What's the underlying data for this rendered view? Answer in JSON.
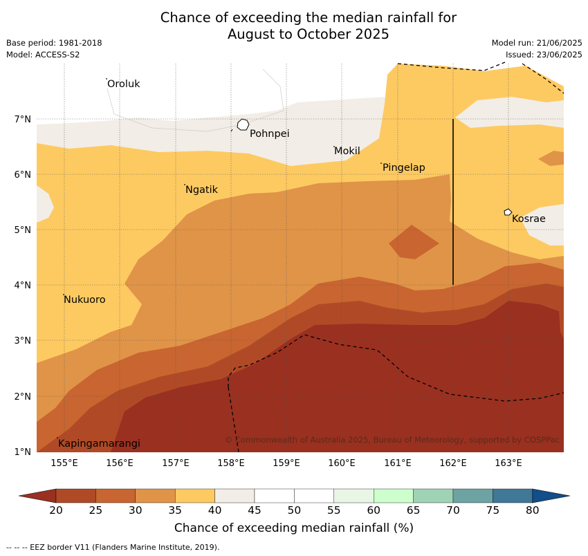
{
  "title": {
    "line1": "Chance of exceeding the median rainfall for",
    "line2": "August to October 2025"
  },
  "meta": {
    "base_period": "Base period: 1981-2018",
    "model": "Model: ACCESS-S2",
    "model_run": "Model run: 21/06/2025",
    "issued": "Issued: 23/06/2025"
  },
  "axes": {
    "lat_labels": [
      "7°N",
      "6°N",
      "5°N",
      "4°N",
      "3°N",
      "2°N",
      "1°N"
    ],
    "lon_labels": [
      "155°E",
      "156°E",
      "157°E",
      "158°E",
      "159°E",
      "160°E",
      "161°E",
      "162°E",
      "163°E"
    ]
  },
  "places": {
    "oroluk": "Oroluk",
    "pohnpei": "Pohnpei",
    "mokil": "Mokil",
    "pingelap": "Pingelap",
    "ngatik": "Ngatik",
    "kosrae": "Kosrae",
    "nukuoro": "Nukuoro",
    "kapingamarangi": "Kapingamarangi"
  },
  "credit": "© Commonwealth of Australia 2025, Bureau of Meteorology, supported by COSPPac",
  "colorbar": {
    "title": "Chance of exceeding median rainfall (%)",
    "ticks": [
      "20",
      "25",
      "30",
      "35",
      "40",
      "45",
      "50",
      "55",
      "60",
      "65",
      "70",
      "75",
      "80"
    ],
    "colors": [
      "#9a3020",
      "#b04a26",
      "#c96530",
      "#e09448",
      "#fdca62",
      "#f2ede6",
      "#ffffff",
      "#ffffff",
      "#e9f6e5",
      "#ccffcc",
      "#9fd3b5",
      "#6ea3a4",
      "#417898",
      "#114e8a"
    ]
  },
  "footer": "-- -- -- EEZ border V11 (Flanders Marine Institute, 2019).",
  "legend_colors": {
    "c20": "#9a3020",
    "c25": "#b04a26",
    "c30": "#c96530",
    "c35": "#e09448",
    "c40": "#fdca62",
    "c45": "#f2ede6",
    "c50": "#ffffff"
  }
}
